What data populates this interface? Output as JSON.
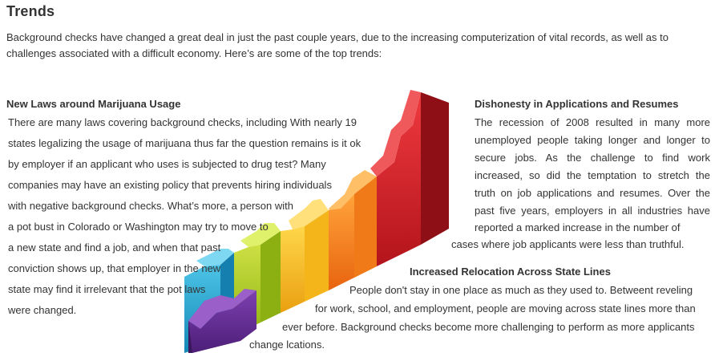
{
  "page": {
    "title": "Trends",
    "intro": "Background checks have changed a great deal in just the past couple years, due to the increasing computerization of vital records, as well as to challenges associated with a difficult economy. Here’s are some of the top trends:"
  },
  "sections": {
    "marijuana": {
      "heading": "New Laws around Marijuana Usage",
      "lines": [
        "There are many laws covering background checks, including With nearly 19",
        "states legalizing the usage of marijuana thus far the question remains is it ok",
        "by employer if an applicant who uses is subjected to drug test? Many",
        "companies may have an existing policy that prevents hiring individuals",
        "with negative background checks. What’s more, a person with",
        "a pot bust in Colorado or Washington may try to move to",
        "a new state and find a job, and when that past",
        "conviction shows up, that employer in the new",
        "state may find it irrelevant that the pot laws",
        " were changed."
      ]
    },
    "dishonesty": {
      "heading": "Dishonesty in Applications and Resumes",
      "lines": [
        "The recession of 2008 resulted in many more",
        "unemployed people taking longer and longer to",
        "secure jobs. As the challenge to find work",
        "increased, so did the temptation to stretch the",
        "truth on job applications and resumes. Over the",
        "past five years, employers in all industries have",
        "reported a marked increase in the number of",
        "cases where job applicants were less than truthful."
      ]
    },
    "relocation": {
      "heading": "Increased Relocation Across State Lines",
      "lines": [
        "People don't stay in one place as much as they used to. Betweent reveling",
        "for work, school, and employment, people are moving across state lines more than",
        "ever before. Background checks become more challenging to perform as more applicants",
        "change lcations."
      ]
    }
  },
  "illustration": {
    "name": "staircase-bar-graphic",
    "colors": [
      "#5a2a8c",
      "#22a6cf",
      "#a9c918",
      "#f4b51b",
      "#f27a1a",
      "#d81f26"
    ]
  }
}
